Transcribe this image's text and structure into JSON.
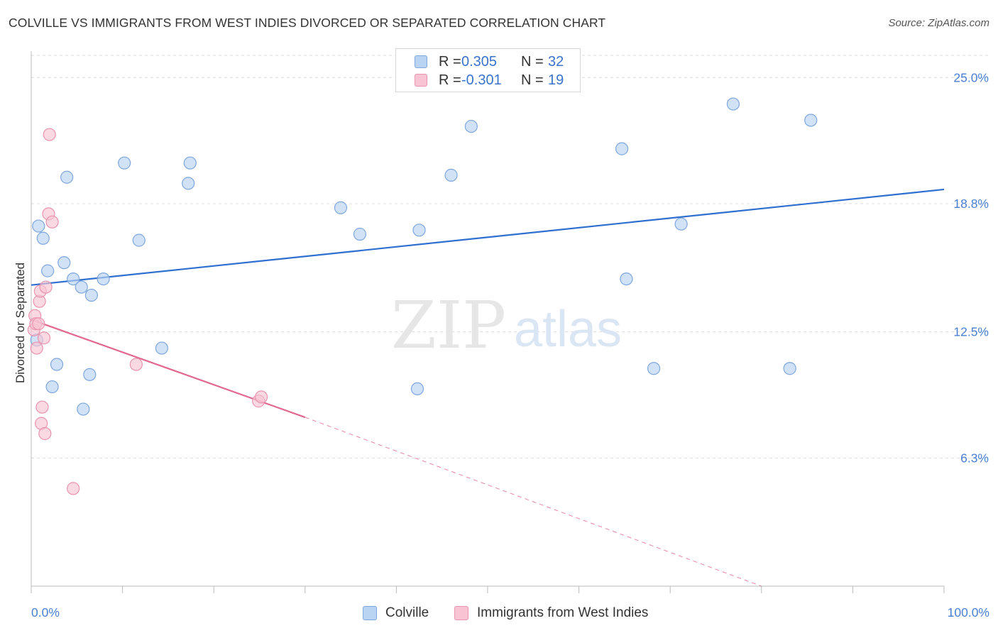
{
  "title": "COLVILLE VS IMMIGRANTS FROM WEST INDIES DIVORCED OR SEPARATED CORRELATION CHART",
  "source": "Source: ZipAtlas.com",
  "watermark": {
    "zip": "ZIP",
    "atlas": "atlas"
  },
  "colors": {
    "blue_fill": "#b9d3f3",
    "blue_stroke": "#7ea7dd",
    "blue_line": "#2f6fcf",
    "pink_fill": "#f8c4d3",
    "pink_stroke": "#ea93ae",
    "pink_line": "#e2688f",
    "grid": "#dddddd",
    "axis_text": "#4a7fd4"
  },
  "legend_top": {
    "rows": [
      {
        "r_label": "R =",
        "r_value": "0.305",
        "n_label": "N =",
        "n_value": "32"
      },
      {
        "r_label": "R =",
        "r_value": "-0.301",
        "n_label": "N =",
        "n_value": "19"
      }
    ]
  },
  "legend_bottom": {
    "items": [
      "Colville",
      "Immigrants from West Indies"
    ]
  },
  "chart_data": {
    "type": "scatter",
    "title": "COLVILLE VS IMMIGRANTS FROM WEST INDIES DIVORCED OR SEPARATED CORRELATION CHART",
    "xlabel": "",
    "ylabel": "Divorced or Separated",
    "xlim": [
      0,
      100
    ],
    "ylim": [
      0,
      26.3
    ],
    "x_tick_labels": [
      "0.0%",
      "100.0%"
    ],
    "y_ticks": [
      6.3,
      12.5,
      18.8,
      25.0
    ],
    "y_tick_labels": [
      "6.3%",
      "12.5%",
      "18.8%",
      "25.0%"
    ],
    "grid": true,
    "legend_position": "top-center",
    "series": [
      {
        "name": "Colville",
        "r": 0.305,
        "n": 32,
        "trend": {
          "x": [
            0,
            100
          ],
          "y": [
            14.8,
            19.5
          ]
        },
        "points": [
          [
            0.6,
            12.1
          ],
          [
            0.8,
            17.7
          ],
          [
            1.3,
            17.1
          ],
          [
            1.8,
            15.5
          ],
          [
            2.3,
            9.8
          ],
          [
            2.8,
            10.9
          ],
          [
            3.6,
            15.9
          ],
          [
            3.9,
            20.1
          ],
          [
            4.6,
            15.1
          ],
          [
            5.5,
            14.7
          ],
          [
            5.7,
            8.7
          ],
          [
            6.4,
            10.4
          ],
          [
            6.6,
            14.3
          ],
          [
            7.9,
            15.1
          ],
          [
            10.2,
            20.8
          ],
          [
            11.8,
            17.0
          ],
          [
            14.3,
            11.7
          ],
          [
            17.2,
            19.8
          ],
          [
            17.4,
            20.8
          ],
          [
            33.9,
            18.6
          ],
          [
            36.0,
            17.3
          ],
          [
            42.5,
            17.5
          ],
          [
            42.3,
            9.7
          ],
          [
            46.0,
            20.2
          ],
          [
            48.2,
            22.6
          ],
          [
            64.7,
            21.5
          ],
          [
            65.2,
            15.1
          ],
          [
            68.2,
            10.7
          ],
          [
            71.2,
            17.8
          ],
          [
            76.9,
            23.7
          ],
          [
            83.1,
            10.7
          ],
          [
            85.4,
            22.9
          ]
        ]
      },
      {
        "name": "Immigrants from West Indies",
        "r": -0.301,
        "n": 19,
        "trend": {
          "x": [
            0,
            30
          ],
          "y": [
            13.1,
            8.3
          ],
          "dashed_to": {
            "x": 80,
            "y": 0
          }
        },
        "points": [
          [
            0.3,
            12.6
          ],
          [
            0.4,
            13.3
          ],
          [
            0.5,
            12.9
          ],
          [
            0.6,
            11.7
          ],
          [
            0.8,
            12.9
          ],
          [
            0.9,
            14.0
          ],
          [
            1.0,
            14.5
          ],
          [
            1.1,
            8.0
          ],
          [
            1.2,
            8.8
          ],
          [
            1.4,
            12.2
          ],
          [
            1.5,
            7.5
          ],
          [
            1.6,
            14.7
          ],
          [
            1.9,
            18.3
          ],
          [
            2.0,
            22.2
          ],
          [
            2.3,
            17.9
          ],
          [
            4.6,
            4.8
          ],
          [
            11.5,
            10.9
          ],
          [
            24.9,
            9.1
          ],
          [
            25.2,
            9.3
          ]
        ]
      }
    ]
  }
}
